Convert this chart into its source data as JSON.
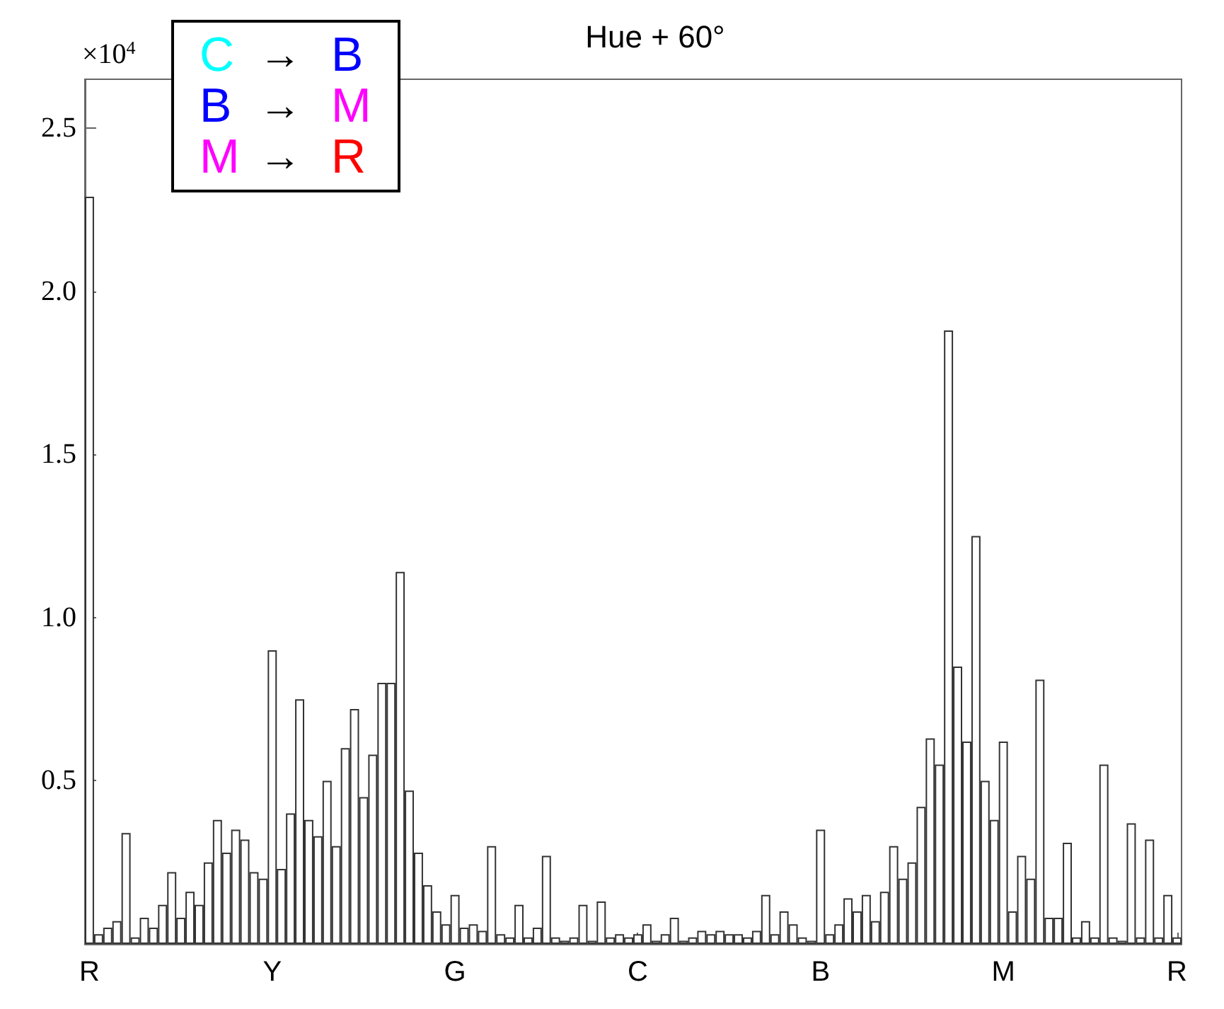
{
  "chart_data": {
    "type": "bar",
    "title": "Hue + 60°",
    "ylabel": "×10$^{4}$",
    "annotations": [
      "C → B",
      "B → M",
      "M → R"
    ],
    "color": "#333333",
    "categories": [
      "R",
      null,
      null,
      null,
      null,
      null,
      null,
      null,
      null,
      null,
      null,
      null,
      null,
      null,
      null,
      null,
      null,
      null,
      null,
      null,
      "Y",
      null,
      null,
      null,
      null,
      null,
      null,
      null,
      null,
      null,
      null,
      null,
      null,
      null,
      null,
      null,
      null,
      null,
      null,
      null,
      "G",
      null,
      null,
      null,
      null,
      null,
      null,
      null,
      null,
      null,
      null,
      null,
      null,
      null,
      null,
      null,
      null,
      null,
      null,
      null,
      "C",
      null,
      null,
      null,
      null,
      null,
      null,
      null,
      null,
      null,
      null,
      null,
      null,
      null,
      null,
      null,
      null,
      null,
      null,
      null,
      "B",
      null,
      null,
      null,
      null,
      null,
      null,
      null,
      null,
      null,
      null,
      null,
      null,
      null,
      null,
      null,
      null,
      null,
      null,
      null,
      "M",
      null,
      null,
      null,
      null,
      null,
      null,
      null,
      null,
      null,
      null,
      null,
      null,
      null,
      null,
      null,
      null,
      null,
      null,
      "R"
    ],
    "values": [
      2.29,
      0.03,
      0.05,
      0.07,
      0.34,
      0.02,
      0.08,
      0.05,
      0.12,
      0.22,
      0.08,
      0.16,
      0.12,
      0.25,
      0.38,
      0.28,
      0.35,
      0.32,
      0.22,
      0.2,
      0.9,
      0.23,
      0.4,
      0.75,
      0.38,
      0.33,
      0.5,
      0.3,
      0.6,
      0.72,
      0.45,
      0.58,
      0.8,
      0.8,
      1.14,
      0.47,
      0.28,
      0.18,
      0.1,
      0.06,
      0.15,
      0.05,
      0.06,
      0.04,
      0.3,
      0.03,
      0.02,
      0.12,
      0.02,
      0.05,
      0.27,
      0.02,
      0.01,
      0.02,
      0.12,
      0.01,
      0.13,
      0.02,
      0.03,
      0.02,
      0.03,
      0.06,
      0.01,
      0.03,
      0.08,
      0.01,
      0.02,
      0.04,
      0.03,
      0.04,
      0.03,
      0.03,
      0.02,
      0.04,
      0.15,
      0.03,
      0.1,
      0.06,
      0.02,
      0.01,
      0.35,
      0.03,
      0.06,
      0.14,
      0.1,
      0.15,
      0.07,
      0.16,
      0.3,
      0.2,
      0.25,
      0.42,
      0.63,
      0.55,
      1.88,
      0.85,
      0.62,
      1.25,
      0.5,
      0.38,
      0.62,
      0.1,
      0.27,
      0.2,
      0.81,
      0.08,
      0.08,
      0.31,
      0.02,
      0.07,
      0.02,
      0.55,
      0.02,
      0.01,
      0.37,
      0.02,
      0.32,
      0.02,
      0.15,
      0.02
    ],
    "ylim": [
      0,
      2.65
    ],
    "yticks": [
      {
        "value": 0.5,
        "label": "0.5"
      },
      {
        "value": 1,
        "label": "1.0"
      },
      {
        "value": 1.5,
        "label": "1.5"
      },
      {
        "value": 2,
        "label": "2.0"
      },
      {
        "value": 2.5,
        "label": "2.5"
      }
    ],
    "grid": false
  }
}
